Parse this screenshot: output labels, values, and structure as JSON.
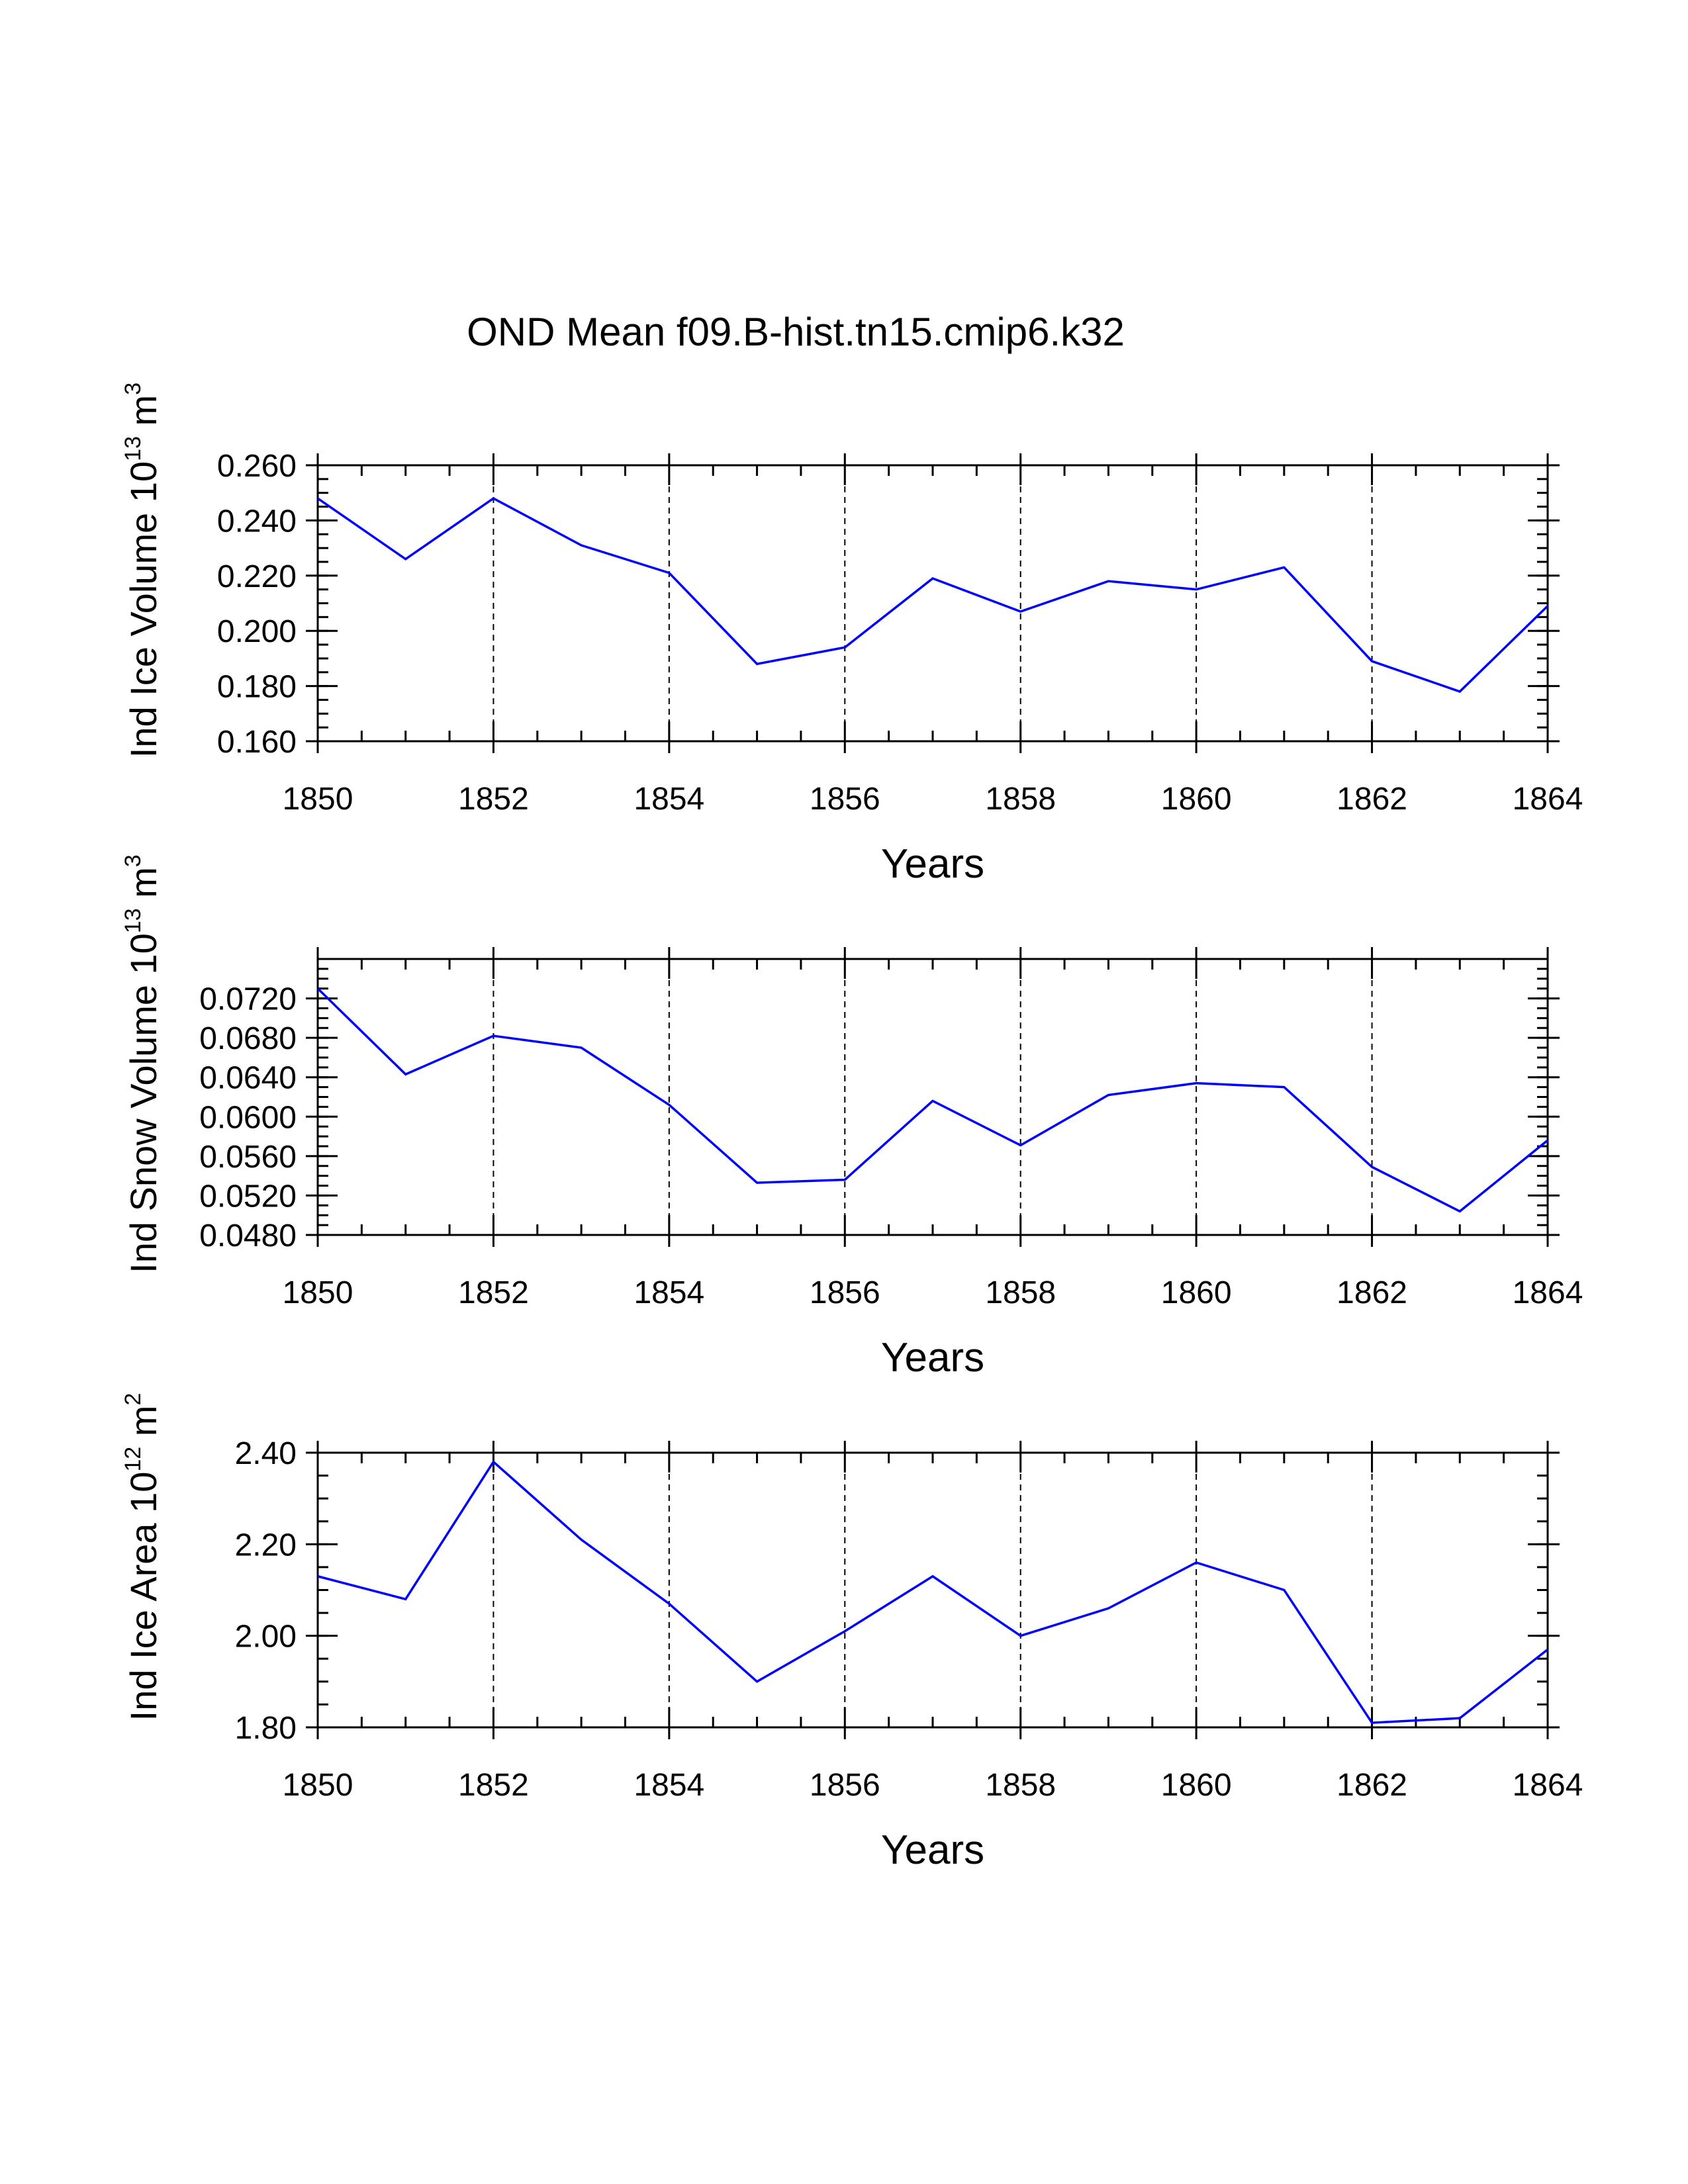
{
  "figure_title": "OND Mean f09.B-hist.tn15.cmip6.k32",
  "colors": {
    "line": "#0000ff",
    "axes": "#000000",
    "grid": "#000000",
    "background": "#ffffff"
  },
  "chart_data": [
    {
      "type": "line",
      "ylabel": {
        "prefix": "Ind Ice Volume 10",
        "exponent": "13",
        "unit": " m",
        "unit_exponent": "3"
      },
      "xlabel": "Years",
      "xlim": [
        1850,
        1864
      ],
      "x_ticks": [
        "1850",
        "1852",
        "1854",
        "1856",
        "1858",
        "1860",
        "1862",
        "1864"
      ],
      "ylim": [
        0.16,
        0.26
      ],
      "y_ticks": [
        0.16,
        0.18,
        0.2,
        0.22,
        0.24,
        0.26
      ],
      "y_tick_labels": [
        "0.160",
        "0.180",
        "0.200",
        "0.220",
        "0.240",
        "0.260"
      ],
      "y_minor_step": 0.005,
      "grid": "dashed vertical at major x ticks",
      "x": [
        1850,
        1851,
        1852,
        1853,
        1854,
        1855,
        1856,
        1857,
        1858,
        1859,
        1860,
        1861,
        1862,
        1863,
        1864
      ],
      "values": [
        0.248,
        0.226,
        0.248,
        0.231,
        0.221,
        0.188,
        0.194,
        0.219,
        0.207,
        0.218,
        0.215,
        0.223,
        0.189,
        0.178,
        0.209
      ]
    },
    {
      "type": "line",
      "ylabel": {
        "prefix": "Ind Snow Volume 10",
        "exponent": "13",
        "unit": " m",
        "unit_exponent": "3"
      },
      "xlabel": "Years",
      "xlim": [
        1850,
        1864
      ],
      "x_ticks": [
        "1850",
        "1852",
        "1854",
        "1856",
        "1858",
        "1860",
        "1862",
        "1864"
      ],
      "ylim": [
        0.048,
        0.076
      ],
      "y_ticks": [
        0.048,
        0.052,
        0.056,
        0.06,
        0.064,
        0.068,
        0.072
      ],
      "y_tick_labels": [
        "0.0480",
        "0.0520",
        "0.0560",
        "0.0600",
        "0.0640",
        "0.0680",
        "0.0720"
      ],
      "y_minor_step": 0.001,
      "grid": "dashed vertical at major x ticks",
      "x": [
        1850,
        1851,
        1852,
        1853,
        1854,
        1855,
        1856,
        1857,
        1858,
        1859,
        1860,
        1861,
        1862,
        1863,
        1864
      ],
      "values": [
        0.073,
        0.0643,
        0.0682,
        0.067,
        0.0612,
        0.0533,
        0.0536,
        0.0616,
        0.0571,
        0.0622,
        0.0634,
        0.063,
        0.0549,
        0.0504,
        0.0576
      ]
    },
    {
      "type": "line",
      "ylabel": {
        "prefix": "Ind Ice Area 10",
        "exponent": "12",
        "unit": " m",
        "unit_exponent": "2"
      },
      "xlabel": "Years",
      "xlim": [
        1850,
        1864
      ],
      "x_ticks": [
        "1850",
        "1852",
        "1854",
        "1856",
        "1858",
        "1860",
        "1862",
        "1864"
      ],
      "ylim": [
        1.8,
        2.4
      ],
      "y_ticks": [
        1.8,
        2.0,
        2.2,
        2.4
      ],
      "y_tick_labels": [
        "1.80",
        "2.00",
        "2.20",
        "2.40"
      ],
      "y_minor_step": 0.05,
      "grid": "dashed vertical at major x ticks",
      "x": [
        1850,
        1851,
        1852,
        1853,
        1854,
        1855,
        1856,
        1857,
        1858,
        1859,
        1860,
        1861,
        1862,
        1863,
        1864
      ],
      "values": [
        2.13,
        2.08,
        2.38,
        2.21,
        2.07,
        1.9,
        2.01,
        2.13,
        2.0,
        2.06,
        2.16,
        2.1,
        1.81,
        1.82,
        1.97
      ]
    }
  ]
}
